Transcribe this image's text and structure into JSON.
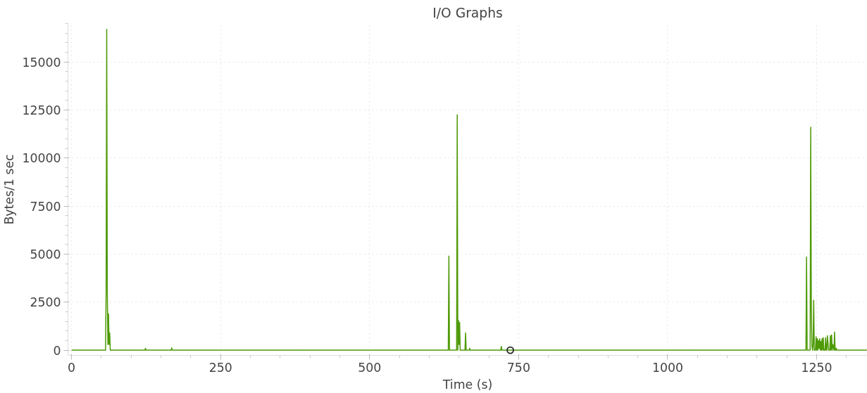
{
  "chart_data": {
    "type": "line",
    "title": "I/O Graphs",
    "xlabel": "Time (s)",
    "ylabel": "Bytes/1 sec",
    "xlim": [
      -6,
      1335
    ],
    "ylim": [
      -270,
      17000
    ],
    "xticks": [
      0,
      250,
      500,
      750,
      1000,
      1250
    ],
    "yticks": [
      0,
      2500,
      5000,
      7500,
      10000,
      12500,
      15000
    ],
    "grid": true,
    "series": [
      {
        "color": "#4e9a06",
        "x": [
          0,
          57,
          58,
          59,
          60,
          61,
          62,
          63,
          64,
          65,
          66,
          67,
          123,
          124,
          125,
          167,
          168,
          169,
          631,
          632,
          633,
          634,
          645,
          646,
          647,
          648,
          649,
          650,
          651,
          652,
          653,
          654,
          655,
          656,
          657,
          660,
          661,
          662,
          667,
          668,
          669,
          720,
          721,
          722,
          1231,
          1232,
          1233,
          1234,
          1238,
          1239,
          1240,
          1241,
          1242,
          1243,
          1244,
          1245,
          1246,
          1248,
          1249,
          1250,
          1251,
          1252,
          1253,
          1254,
          1255,
          1256,
          1257,
          1258,
          1259,
          1260,
          1261,
          1262,
          1264,
          1265,
          1266,
          1267,
          1268,
          1270,
          1272,
          1273,
          1274,
          1275,
          1276,
          1277,
          1279,
          1280,
          1281,
          1282,
          1283,
          1284,
          1286,
          1287,
          1335
        ],
        "values": [
          0,
          0,
          3000,
          16700,
          3000,
          300,
          1900,
          300,
          900,
          0,
          0,
          0,
          0,
          100,
          0,
          0,
          120,
          0,
          0,
          0,
          4900,
          0,
          0,
          0,
          12250,
          0,
          1550,
          300,
          1450,
          0,
          0,
          0,
          0,
          0,
          0,
          0,
          900,
          0,
          0,
          100,
          0,
          0,
          200,
          0,
          0,
          0,
          4850,
          0,
          0,
          0,
          11600,
          2000,
          200,
          0,
          300,
          2600,
          0,
          0,
          700,
          0,
          600,
          0,
          500,
          100,
          600,
          0,
          450,
          0,
          600,
          0,
          650,
          0,
          0,
          650,
          0,
          0,
          750,
          0,
          0,
          750,
          0,
          800,
          0,
          300,
          0,
          950,
          0,
          0,
          100,
          0,
          0,
          0,
          0
        ]
      },
      {
        "color": "#222222",
        "type": "scatter",
        "marker": "circle",
        "x": [
          736
        ],
        "values": [
          0
        ]
      }
    ]
  }
}
